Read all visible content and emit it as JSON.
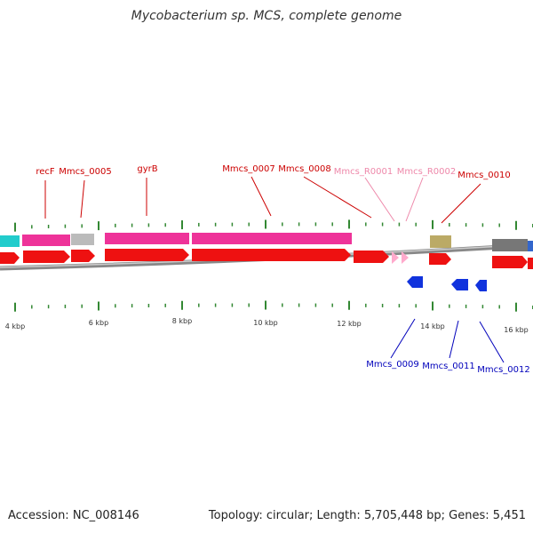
{
  "title": "Mycobacterium sp. MCS, complete genome",
  "footer": {
    "accession": "Accession: NC_008146",
    "summary": "Topology: circular; Length: 5,705,448 bp; Genes: 5,451"
  },
  "colors": {
    "cds": "#ee1111",
    "feature_magenta": "#ee3399",
    "feature_cyan": "#22cccc",
    "feature_gray": "#bbbbbb",
    "feature_olive": "#bbaa66",
    "feature_dark_gray": "#777777",
    "feature_blue": "#3366cc",
    "rna": "#ffaacc",
    "reverse_strand": "#1133dd",
    "tick": "#338833",
    "label_forward": "#cc0000",
    "label_rna": "#ee88aa",
    "label_reverse": "#0000bb"
  },
  "scale": {
    "unit": "kbp",
    "labels": [
      "4 kbp",
      "6 kbp",
      "8 kbp",
      "10 kbp",
      "12 kbp",
      "14 kbp",
      "16 kbp"
    ]
  },
  "gene_labels": [
    {
      "text": "recF",
      "strand": "forward",
      "kind": "gene"
    },
    {
      "text": "Mmcs_0005",
      "strand": "forward",
      "kind": "gene"
    },
    {
      "text": "gyrB",
      "strand": "forward",
      "kind": "gene"
    },
    {
      "text": "Mmcs_0007",
      "strand": "forward",
      "kind": "gene"
    },
    {
      "text": "Mmcs_0008",
      "strand": "forward",
      "kind": "gene"
    },
    {
      "text": "Mmcs_R0001",
      "strand": "forward",
      "kind": "rna"
    },
    {
      "text": "Mmcs_R0002",
      "strand": "forward",
      "kind": "rna"
    },
    {
      "text": "Mmcs_0010",
      "strand": "forward",
      "kind": "gene"
    },
    {
      "text": "Mmcs_0009",
      "strand": "reverse",
      "kind": "gene"
    },
    {
      "text": "Mmcs_0011",
      "strand": "reverse",
      "kind": "gene"
    },
    {
      "text": "Mmcs_0012",
      "strand": "reverse",
      "kind": "gene"
    }
  ]
}
